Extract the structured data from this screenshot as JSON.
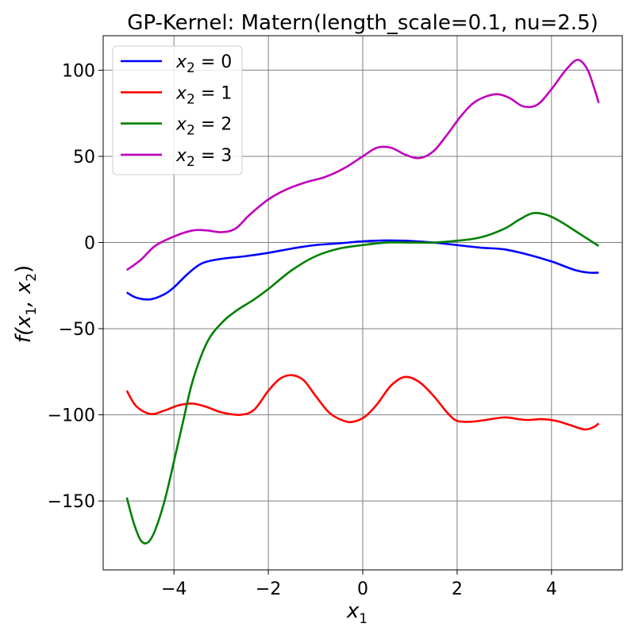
{
  "chart_data": {
    "type": "line",
    "title": "GP-Kernel: Matern(length_scale=0.1, nu=2.5)",
    "xlabel": {
      "base": "x",
      "sub": "1"
    },
    "ylabel": {
      "pre": "f(x",
      "sub1": "1",
      "mid": ", x",
      "sub2": "2",
      "post": ")"
    },
    "xlim": [
      -5.5,
      5.5
    ],
    "ylim": [
      -190,
      120
    ],
    "xticks": [
      -4,
      -2,
      0,
      2,
      4
    ],
    "xtick_labels": [
      "−4",
      "−2",
      "0",
      "2",
      "4"
    ],
    "yticks": [
      -150,
      -100,
      -50,
      0,
      50,
      100
    ],
    "ytick_labels": [
      "−150",
      "−100",
      "−50",
      "0",
      "50",
      "100"
    ],
    "grid": true,
    "legend_position": "top-left",
    "series": [
      {
        "name": "x2 = 0",
        "label": {
          "base": "x",
          "sub": "2",
          "rest": " = 0"
        },
        "color": "#0000ff",
        "points": [
          [
            -5,
            -29
          ],
          [
            -4.8,
            -32
          ],
          [
            -4.5,
            -33
          ],
          [
            -4.2,
            -30
          ],
          [
            -4,
            -26
          ],
          [
            -3.7,
            -18
          ],
          [
            -3.4,
            -12
          ],
          [
            -3,
            -9.5
          ],
          [
            -2.5,
            -8
          ],
          [
            -2,
            -6
          ],
          [
            -1.5,
            -3.5
          ],
          [
            -1,
            -1.5
          ],
          [
            -0.5,
            -0.5
          ],
          [
            0,
            0.7
          ],
          [
            0.5,
            1.2
          ],
          [
            1,
            0.9
          ],
          [
            1.5,
            0
          ],
          [
            2,
            -1.5
          ],
          [
            2.5,
            -3
          ],
          [
            3,
            -4
          ],
          [
            3.5,
            -7
          ],
          [
            4,
            -11
          ],
          [
            4.5,
            -16
          ],
          [
            4.8,
            -17.5
          ],
          [
            5,
            -17.5
          ]
        ]
      },
      {
        "name": "x2 = 1",
        "label": {
          "base": "x",
          "sub": "2",
          "rest": " = 1"
        },
        "color": "#ff0000",
        "points": [
          [
            -5,
            -86
          ],
          [
            -4.8,
            -95
          ],
          [
            -4.5,
            -99.5
          ],
          [
            -4.2,
            -97.5
          ],
          [
            -3.9,
            -94.5
          ],
          [
            -3.6,
            -93.5
          ],
          [
            -3.3,
            -95.5
          ],
          [
            -3,
            -98.5
          ],
          [
            -2.6,
            -100
          ],
          [
            -2.3,
            -97
          ],
          [
            -2,
            -86
          ],
          [
            -1.75,
            -79
          ],
          [
            -1.5,
            -77
          ],
          [
            -1.25,
            -80
          ],
          [
            -1,
            -89
          ],
          [
            -0.7,
            -99
          ],
          [
            -0.4,
            -103.5
          ],
          [
            -0.2,
            -104
          ],
          [
            0.05,
            -101
          ],
          [
            0.3,
            -94
          ],
          [
            0.6,
            -83
          ],
          [
            0.9,
            -78
          ],
          [
            1.2,
            -81
          ],
          [
            1.5,
            -89
          ],
          [
            1.8,
            -99
          ],
          [
            2,
            -103.5
          ],
          [
            2.3,
            -104
          ],
          [
            2.6,
            -103
          ],
          [
            3,
            -101.5
          ],
          [
            3.3,
            -102.5
          ],
          [
            3.5,
            -103
          ],
          [
            3.8,
            -102.5
          ],
          [
            4.1,
            -103.5
          ],
          [
            4.4,
            -106
          ],
          [
            4.7,
            -108.5
          ],
          [
            4.9,
            -107
          ],
          [
            5,
            -105
          ]
        ]
      },
      {
        "name": "x2 = 2",
        "label": {
          "base": "x",
          "sub": "2",
          "rest": " = 2"
        },
        "color": "#008000",
        "points": [
          [
            -5,
            -148
          ],
          [
            -4.85,
            -163
          ],
          [
            -4.7,
            -173
          ],
          [
            -4.55,
            -174
          ],
          [
            -4.4,
            -167
          ],
          [
            -4.2,
            -150
          ],
          [
            -4,
            -127
          ],
          [
            -3.8,
            -103
          ],
          [
            -3.6,
            -80
          ],
          [
            -3.3,
            -58
          ],
          [
            -3,
            -47
          ],
          [
            -2.7,
            -40
          ],
          [
            -2.3,
            -33
          ],
          [
            -2,
            -27
          ],
          [
            -1.5,
            -16
          ],
          [
            -1,
            -8
          ],
          [
            -0.5,
            -3.5
          ],
          [
            0,
            -1.5
          ],
          [
            0.5,
            0
          ],
          [
            1,
            0
          ],
          [
            1.5,
            0
          ],
          [
            2,
            1
          ],
          [
            2.5,
            3
          ],
          [
            3,
            8
          ],
          [
            3.3,
            13
          ],
          [
            3.6,
            17
          ],
          [
            3.9,
            16
          ],
          [
            4.2,
            12
          ],
          [
            4.6,
            5
          ],
          [
            5,
            -2
          ]
        ]
      },
      {
        "name": "x2 = 3",
        "label": {
          "base": "x",
          "sub": "2",
          "rest": " = 3"
        },
        "color": "#bf00bf",
        "points": [
          [
            -5,
            -16
          ],
          [
            -4.7,
            -10
          ],
          [
            -4.4,
            -2
          ],
          [
            -4,
            3.5
          ],
          [
            -3.6,
            7
          ],
          [
            -3.3,
            7
          ],
          [
            -3,
            6
          ],
          [
            -2.7,
            8
          ],
          [
            -2.4,
            16
          ],
          [
            -2,
            25
          ],
          [
            -1.6,
            31
          ],
          [
            -1.2,
            35
          ],
          [
            -0.8,
            38
          ],
          [
            -0.4,
            43
          ],
          [
            0,
            50
          ],
          [
            0.3,
            55
          ],
          [
            0.6,
            55
          ],
          [
            0.9,
            51
          ],
          [
            1.2,
            49
          ],
          [
            1.5,
            53
          ],
          [
            1.8,
            63
          ],
          [
            2.1,
            74
          ],
          [
            2.4,
            82
          ],
          [
            2.8,
            86
          ],
          [
            3.1,
            84
          ],
          [
            3.4,
            79
          ],
          [
            3.7,
            80
          ],
          [
            4,
            89
          ],
          [
            4.3,
            100
          ],
          [
            4.55,
            106
          ],
          [
            4.75,
            101
          ],
          [
            4.9,
            90
          ],
          [
            5,
            81
          ]
        ]
      }
    ]
  }
}
